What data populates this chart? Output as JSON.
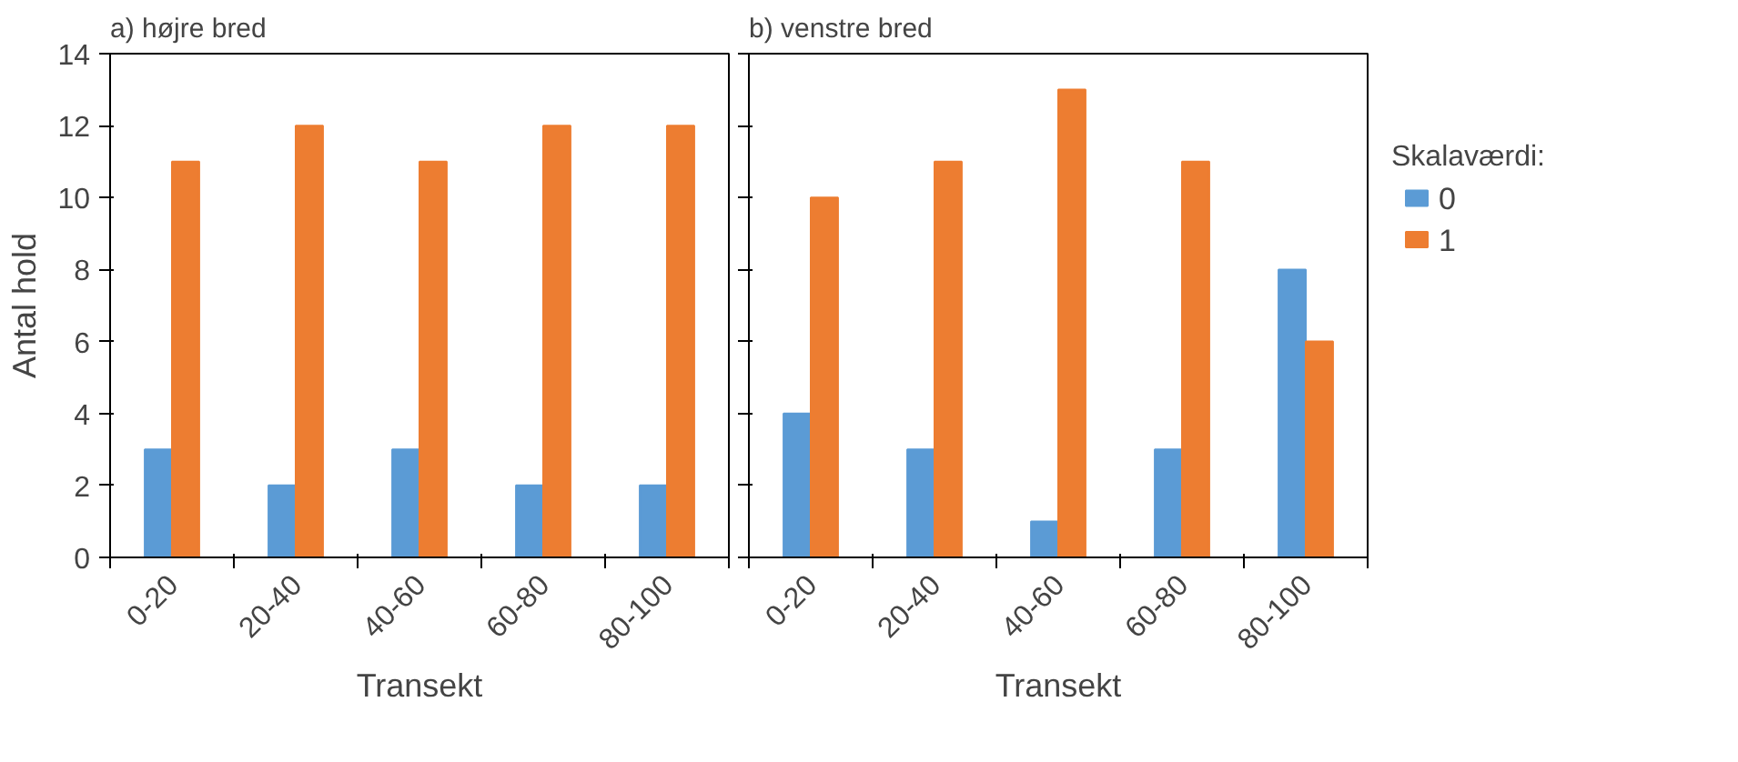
{
  "chart_data": [
    {
      "type": "bar",
      "title": "a) højre bred",
      "xlabel": "Transekt",
      "ylabel": "Antal hold",
      "categories": [
        "0-20",
        "20-40",
        "40-60",
        "60-80",
        "80-100"
      ],
      "series": [
        {
          "name": "0",
          "color": "#5b9bd5",
          "values": [
            3,
            2,
            3,
            2,
            2
          ]
        },
        {
          "name": "1",
          "color": "#ed7d31",
          "values": [
            11,
            12,
            11,
            12,
            12
          ]
        }
      ],
      "ylim": [
        0,
        14
      ],
      "yticks": [
        0,
        2,
        4,
        6,
        8,
        10,
        12,
        14
      ],
      "grid": false,
      "legend": "right"
    },
    {
      "type": "bar",
      "title": "b) venstre bred",
      "xlabel": "Transekt",
      "categories": [
        "0-20",
        "20-40",
        "40-60",
        "60-80",
        "80-100"
      ],
      "series": [
        {
          "name": "0",
          "color": "#5b9bd5",
          "values": [
            4,
            3,
            1,
            3,
            8
          ]
        },
        {
          "name": "1",
          "color": "#ed7d31",
          "values": [
            10,
            11,
            13,
            11,
            6
          ]
        }
      ],
      "ylim": [
        0,
        14
      ],
      "yticks": [
        0,
        2,
        4,
        6,
        8,
        10,
        12,
        14
      ],
      "grid": false,
      "legend": "right",
      "legend_title": "Skalaværdi:",
      "tick_labels": "x"
    }
  ]
}
